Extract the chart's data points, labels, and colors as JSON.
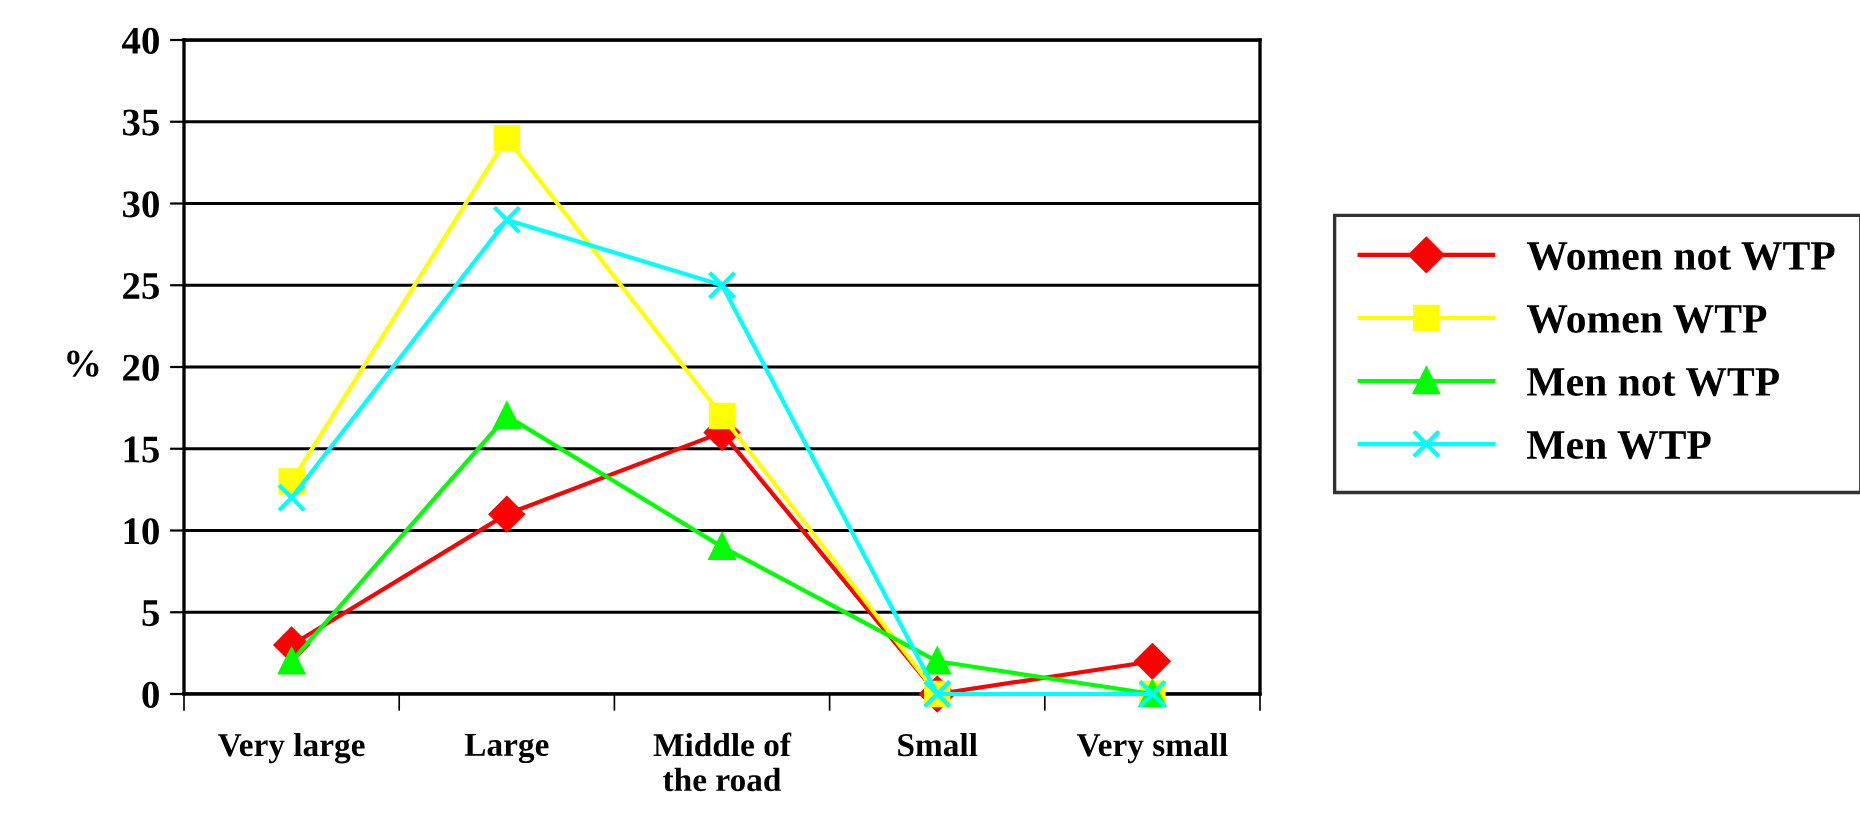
{
  "chart_data": {
    "type": "line",
    "ylabel": "%",
    "categories": [
      "Very large",
      "Large",
      "Middle of\nthe road",
      "Small",
      "Very small"
    ],
    "series": [
      {
        "name": "Women not WTP",
        "color": "#ff0000",
        "marker": "diamond",
        "values": [
          3,
          11,
          16,
          0,
          2
        ]
      },
      {
        "name": "Women WTP",
        "color": "#ffff00",
        "marker": "square",
        "values": [
          13,
          34,
          17,
          0,
          0
        ]
      },
      {
        "name": "Men not WTP",
        "color": "#00ff00",
        "marker": "triangle",
        "values": [
          2,
          17,
          9,
          2,
          0
        ]
      },
      {
        "name": "Men WTP",
        "color": "#00ffff",
        "marker": "cross",
        "values": [
          12,
          29,
          25,
          0,
          0
        ]
      }
    ],
    "ylim": [
      0,
      40
    ],
    "yticks": [
      0,
      5,
      10,
      15,
      20,
      25,
      30,
      35,
      40
    ],
    "grid": "y",
    "legend": "right"
  }
}
